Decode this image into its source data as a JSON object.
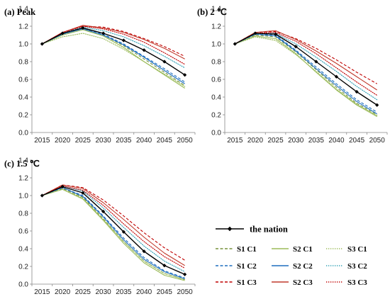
{
  "chart_data": [
    {
      "type": "line",
      "title": "(a) Peak",
      "x": [
        2015,
        2020,
        2025,
        2030,
        2035,
        2040,
        2045,
        2050
      ],
      "ylim": [
        0,
        1.4
      ],
      "yticks": [
        "0.0",
        "0.2",
        "0.4",
        "0.6",
        "0.8",
        "1.0",
        "1.2",
        "1.4"
      ],
      "grid": false,
      "series": [
        {
          "name": "the nation",
          "values": [
            1.0,
            1.12,
            1.18,
            1.12,
            1.04,
            0.93,
            0.8,
            0.65
          ]
        },
        {
          "name": "S1 C1",
          "values": [
            1.0,
            1.11,
            1.17,
            1.1,
            0.98,
            0.83,
            0.68,
            0.53
          ]
        },
        {
          "name": "S2 C1",
          "values": [
            1.0,
            1.1,
            1.16,
            1.09,
            0.96,
            0.8,
            0.65,
            0.5
          ]
        },
        {
          "name": "S3 C1",
          "values": [
            1.0,
            1.08,
            1.12,
            1.06,
            0.94,
            0.8,
            0.66,
            0.52
          ]
        },
        {
          "name": "S1 C2",
          "values": [
            1.0,
            1.12,
            1.18,
            1.11,
            1.0,
            0.86,
            0.72,
            0.57
          ]
        },
        {
          "name": "S2 C2",
          "values": [
            1.0,
            1.11,
            1.17,
            1.1,
            0.99,
            0.85,
            0.7,
            0.55
          ]
        },
        {
          "name": "S3 C2",
          "values": [
            1.0,
            1.12,
            1.19,
            1.15,
            1.08,
            0.98,
            0.86,
            0.73
          ]
        },
        {
          "name": "S1 C3",
          "values": [
            1.0,
            1.13,
            1.2,
            1.19,
            1.14,
            1.06,
            0.97,
            0.86
          ]
        },
        {
          "name": "S2 C3",
          "values": [
            1.0,
            1.13,
            1.21,
            1.18,
            1.13,
            1.05,
            0.95,
            0.83
          ]
        },
        {
          "name": "S3 C3",
          "values": [
            1.0,
            1.13,
            1.2,
            1.17,
            1.11,
            1.02,
            0.9,
            0.77
          ]
        }
      ]
    },
    {
      "type": "line",
      "title": "(b) 2 ℃",
      "x": [
        2015,
        2020,
        2025,
        2030,
        2035,
        2040,
        2045,
        2050
      ],
      "ylim": [
        0,
        1.4
      ],
      "yticks": [
        "0.0",
        "0.2",
        "0.4",
        "0.6",
        "0.8",
        "1.0",
        "1.2",
        "1.4"
      ],
      "grid": false,
      "series": [
        {
          "name": "the nation",
          "values": [
            1.0,
            1.12,
            1.11,
            0.97,
            0.8,
            0.63,
            0.46,
            0.31
          ]
        },
        {
          "name": "S1 C1",
          "values": [
            1.0,
            1.1,
            1.08,
            0.91,
            0.71,
            0.51,
            0.33,
            0.2
          ]
        },
        {
          "name": "S2 C1",
          "values": [
            1.0,
            1.09,
            1.06,
            0.89,
            0.68,
            0.48,
            0.31,
            0.18
          ]
        },
        {
          "name": "S3 C1",
          "values": [
            1.0,
            1.08,
            1.04,
            0.88,
            0.69,
            0.49,
            0.32,
            0.19
          ]
        },
        {
          "name": "S1 C2",
          "values": [
            1.0,
            1.11,
            1.1,
            0.93,
            0.74,
            0.55,
            0.37,
            0.23
          ]
        },
        {
          "name": "S2 C2",
          "values": [
            1.0,
            1.11,
            1.09,
            0.92,
            0.72,
            0.53,
            0.35,
            0.21
          ]
        },
        {
          "name": "S3 C2",
          "values": [
            1.0,
            1.12,
            1.12,
            1.0,
            0.85,
            0.69,
            0.52,
            0.37
          ]
        },
        {
          "name": "S1 C3",
          "values": [
            1.0,
            1.13,
            1.14,
            1.06,
            0.95,
            0.82,
            0.68,
            0.55
          ]
        },
        {
          "name": "S2 C3",
          "values": [
            1.0,
            1.13,
            1.15,
            1.05,
            0.92,
            0.78,
            0.63,
            0.48
          ]
        },
        {
          "name": "S3 C3",
          "values": [
            1.0,
            1.12,
            1.13,
            1.03,
            0.89,
            0.73,
            0.57,
            0.42
          ]
        }
      ]
    },
    {
      "type": "line",
      "title": "(c) 1.5 ℃",
      "x": [
        2015,
        2020,
        2025,
        2030,
        2035,
        2040,
        2045,
        2050
      ],
      "ylim": [
        0,
        1.4
      ],
      "yticks": [
        "0.0",
        "0.2",
        "0.4",
        "0.6",
        "0.8",
        "1.0",
        "1.2",
        "1.4"
      ],
      "grid": false,
      "series": [
        {
          "name": "the nation",
          "values": [
            1.0,
            1.1,
            1.03,
            0.82,
            0.59,
            0.37,
            0.21,
            0.11
          ]
        },
        {
          "name": "S1 C1",
          "values": [
            1.0,
            1.08,
            0.98,
            0.74,
            0.48,
            0.26,
            0.12,
            0.05
          ]
        },
        {
          "name": "S2 C1",
          "values": [
            1.0,
            1.07,
            0.96,
            0.72,
            0.46,
            0.24,
            0.1,
            0.04
          ]
        },
        {
          "name": "S3 C1",
          "values": [
            1.0,
            1.07,
            0.97,
            0.73,
            0.48,
            0.26,
            0.12,
            0.05
          ]
        },
        {
          "name": "S1 C2",
          "values": [
            1.0,
            1.09,
            1.0,
            0.77,
            0.52,
            0.3,
            0.15,
            0.07
          ]
        },
        {
          "name": "S2 C2",
          "values": [
            1.0,
            1.09,
            0.99,
            0.76,
            0.5,
            0.28,
            0.14,
            0.06
          ]
        },
        {
          "name": "S3 C2",
          "values": [
            1.0,
            1.11,
            1.05,
            0.86,
            0.64,
            0.43,
            0.26,
            0.14
          ]
        },
        {
          "name": "S1 C3",
          "values": [
            1.0,
            1.12,
            1.09,
            0.95,
            0.77,
            0.58,
            0.41,
            0.27
          ]
        },
        {
          "name": "S2 C3",
          "values": [
            1.0,
            1.12,
            1.08,
            0.92,
            0.73,
            0.53,
            0.35,
            0.21
          ]
        },
        {
          "name": "S3 C3",
          "values": [
            1.0,
            1.11,
            1.06,
            0.89,
            0.68,
            0.48,
            0.31,
            0.18
          ]
        }
      ]
    }
  ],
  "legend": {
    "items": [
      {
        "name": "the nation",
        "color": "#000000",
        "dash": "solid",
        "marker": true
      },
      {
        "name": "S1 C1",
        "color": "#76923c",
        "dash": "dashed"
      },
      {
        "name": "S2 C1",
        "color": "#9bbb59",
        "dash": "solid"
      },
      {
        "name": "S3 C1",
        "color": "#9bbb59",
        "dash": "dotted"
      },
      {
        "name": "S1 C2",
        "color": "#1f6fbf",
        "dash": "dashed"
      },
      {
        "name": "S2 C2",
        "color": "#1f6fbf",
        "dash": "solid"
      },
      {
        "name": "S3 C2",
        "color": "#31a0b5",
        "dash": "dotted"
      },
      {
        "name": "S1 C3",
        "color": "#c00000",
        "dash": "dashed"
      },
      {
        "name": "S2 C3",
        "color": "#c0392b",
        "dash": "solid"
      },
      {
        "name": "S3 C3",
        "color": "#c00000",
        "dash": "dotted"
      }
    ]
  }
}
